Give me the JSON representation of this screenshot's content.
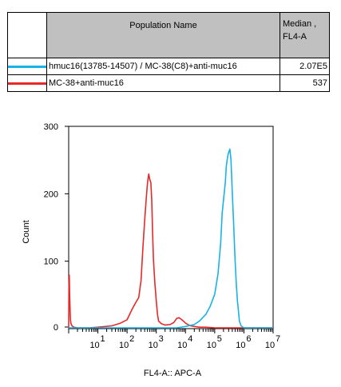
{
  "table": {
    "header_name": "Population Name",
    "header_median_line1": "Median ,",
    "header_median_line2": "FL4-A",
    "rows": [
      {
        "name": "hmuc16(13785-14507) / MC-38(C8)+anti-muc16",
        "median": "2.07E5",
        "color": "#19b2e6"
      },
      {
        "name": "MC-38+anti-muc16",
        "median": "537",
        "color": "#e62828"
      }
    ]
  },
  "chart_data": {
    "type": "line",
    "title": "",
    "xlabel": "FL4-A:: APC-A",
    "ylabel": "Count",
    "xscale": "log",
    "xlim": [
      1,
      10000000
    ],
    "ylim": [
      0,
      300
    ],
    "y_ticks": [
      0,
      100,
      200,
      300
    ],
    "x_ticks": [
      {
        "value": 10,
        "exp": "1"
      },
      {
        "value": 100,
        "exp": "2"
      },
      {
        "value": 1000,
        "exp": "3"
      },
      {
        "value": 10000,
        "exp": "4"
      },
      {
        "value": 100000,
        "exp": "5"
      },
      {
        "value": 1000000,
        "exp": "6"
      },
      {
        "value": 10000000,
        "exp": "7"
      }
    ],
    "tick_base": "10",
    "series": [
      {
        "name": "MC-38+anti-muc16",
        "color": "#e62828",
        "x": [
          1.0,
          1.02,
          1.05,
          1.08,
          1.12,
          1.15,
          1.2,
          1.3,
          1.5,
          2,
          5,
          10,
          30,
          60,
          100,
          150,
          200,
          250,
          300,
          350,
          400,
          450,
          500,
          550,
          600,
          650,
          700,
          750,
          800,
          900,
          1000,
          1100,
          1200,
          1500,
          2000,
          3000,
          4000,
          5000,
          6000,
          7000,
          8000,
          10000,
          12000,
          15000,
          20000,
          30000,
          50000,
          100000,
          1000000,
          10000000
        ],
        "y": [
          0,
          62,
          78,
          50,
          25,
          12,
          6,
          3,
          1,
          0,
          0,
          1,
          3,
          7,
          12,
          28,
          38,
          45,
          70,
          120,
          160,
          190,
          215,
          228,
          220,
          215,
          190,
          140,
          100,
          65,
          40,
          20,
          10,
          6,
          4,
          5,
          8,
          14,
          15,
          13,
          11,
          7,
          5,
          3,
          2,
          1,
          1,
          0,
          0,
          0
        ]
      },
      {
        "name": "hmuc16(13785-14507) / MC-38(C8)+anti-muc16",
        "color": "#19b2e6",
        "x": [
          1,
          1000,
          5000,
          10000,
          20000,
          30000,
          50000,
          70000,
          100000,
          130000,
          160000,
          180000,
          200000,
          230000,
          250000,
          280000,
          300000,
          330000,
          360000,
          400000,
          450000,
          500000,
          550000,
          600000,
          650000,
          700000,
          800000,
          1000000,
          10000000
        ],
        "y": [
          0,
          0,
          0,
          2,
          5,
          10,
          20,
          32,
          50,
          80,
          125,
          170,
          190,
          215,
          240,
          255,
          260,
          265,
          250,
          200,
          150,
          100,
          65,
          40,
          25,
          10,
          3,
          0,
          0
        ]
      }
    ]
  }
}
